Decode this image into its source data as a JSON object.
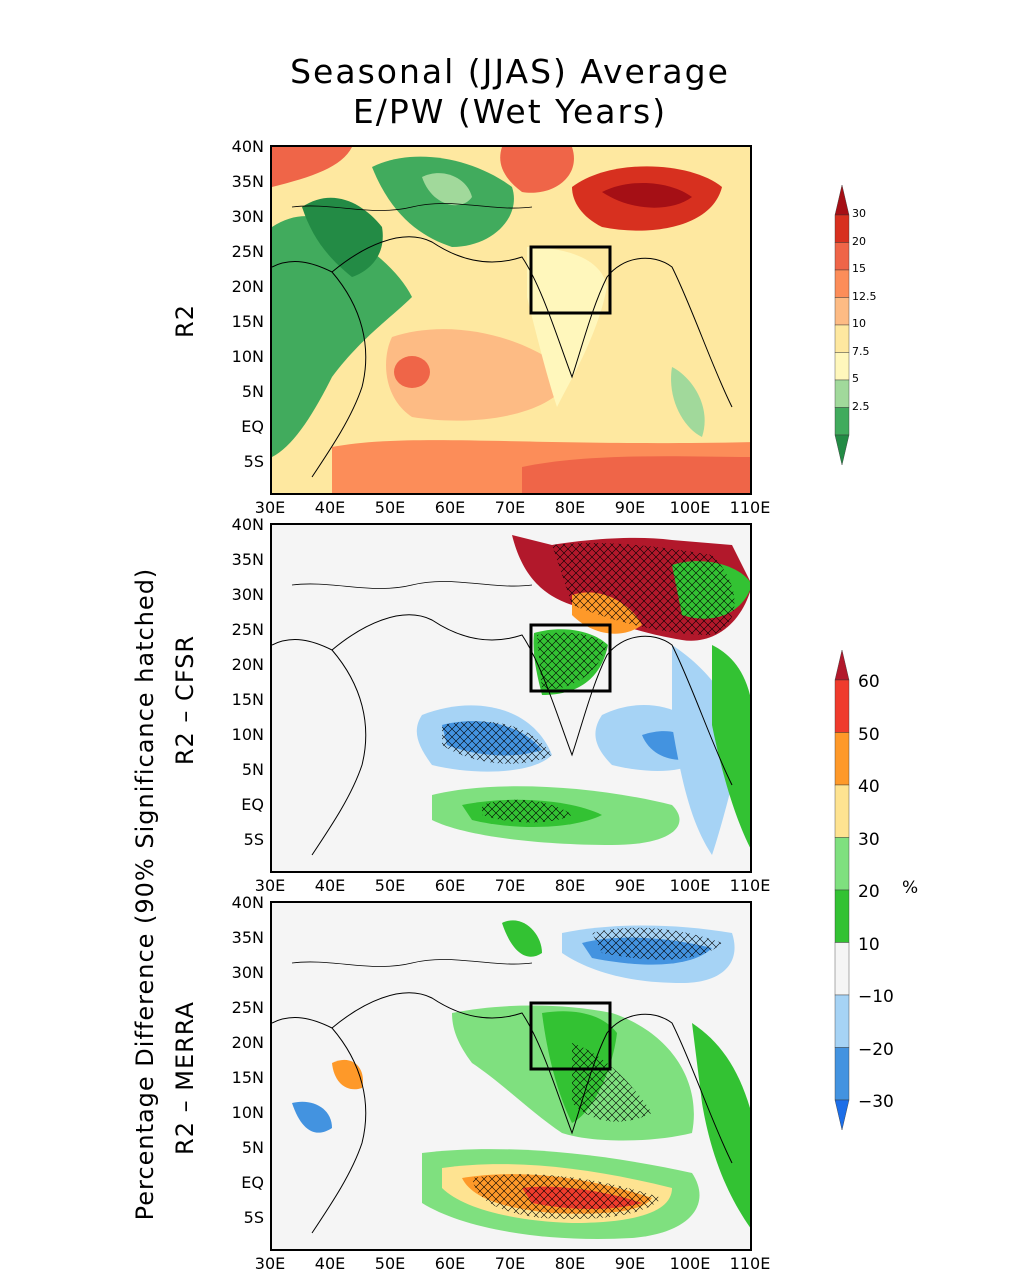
{
  "title": {
    "line1": "Seasonal (JJAS) Average",
    "line2": "E/PW (Wet Years)"
  },
  "yticks": [
    "40N",
    "35N",
    "30N",
    "25N",
    "20N",
    "15N",
    "10N",
    "5N",
    "EQ",
    "5S"
  ],
  "xticks": [
    "30E",
    "40E",
    "50E",
    "60E",
    "70E",
    "80E",
    "90E",
    "100E",
    "110E"
  ],
  "panels": [
    {
      "label": "R2"
    },
    {
      "label": "R2 – CFSR"
    },
    {
      "label": "R2 – MERRA"
    }
  ],
  "side_label": "Percentage Difference (90% Significance hatched)",
  "colorbar1": {
    "ticks": [
      "30",
      "20",
      "15",
      "12.5",
      "10",
      "7.5",
      "5",
      "2.5"
    ],
    "colors": [
      "#a50f15",
      "#d7301f",
      "#ef6548",
      "#fc8d59",
      "#fdbb84",
      "#fee8a0",
      "#fff7bc",
      "#a1d99b",
      "#41ab5d",
      "#238b45"
    ]
  },
  "colorbar2": {
    "ticks": [
      "60",
      "50",
      "40",
      "30",
      "20",
      "10",
      "−10",
      "−20",
      "−30"
    ],
    "unit": "%",
    "colors": [
      "#b2182b",
      "#ef3b2c",
      "#fe9929",
      "#fee391",
      "#7fe07f",
      "#33c233",
      "#f5f5f5",
      "#a6d3f5",
      "#4393e0",
      "#1c6ee8"
    ]
  }
}
